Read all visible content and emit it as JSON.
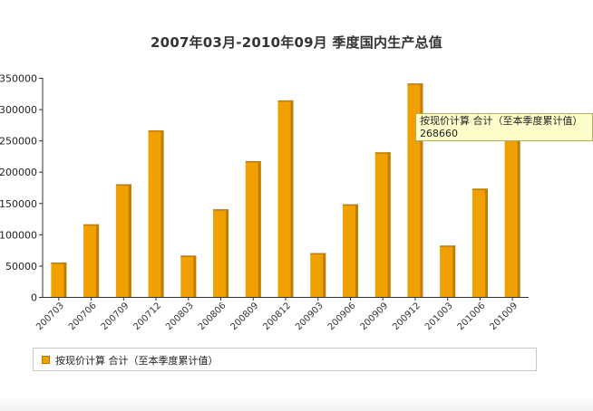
{
  "chart_data": {
    "type": "bar",
    "title": "2007年03月-2010年09月 季度国内生产总值",
    "categories": [
      "200703",
      "200706",
      "200709",
      "200712",
      "200803",
      "200806",
      "200809",
      "200812",
      "200903",
      "200906",
      "200909",
      "200912",
      "201003",
      "201006",
      "201009"
    ],
    "series": [
      {
        "name": "按现价计算 合计（至本季度累计值）",
        "values": [
          55000,
          116000,
          180000,
          266000,
          66000,
          140000,
          217000,
          314000,
          70000,
          148000,
          231000,
          341000,
          82000,
          173000,
          268660
        ]
      }
    ],
    "y_ticks": [
      "0",
      "50000",
      "100000",
      "150000",
      "200000",
      "250000",
      "300000",
      "350000"
    ],
    "ylim": [
      0,
      350000
    ],
    "xlabel": "",
    "ylabel": "",
    "grid": false,
    "legend_position": "bottom",
    "colors": {
      "bar": "#f0a000",
      "bar_shade": "#c07d00",
      "axis": "#333333"
    }
  },
  "tooltip": {
    "label": "按现价计算 合计（至本季度累计值）",
    "value": "268660"
  }
}
